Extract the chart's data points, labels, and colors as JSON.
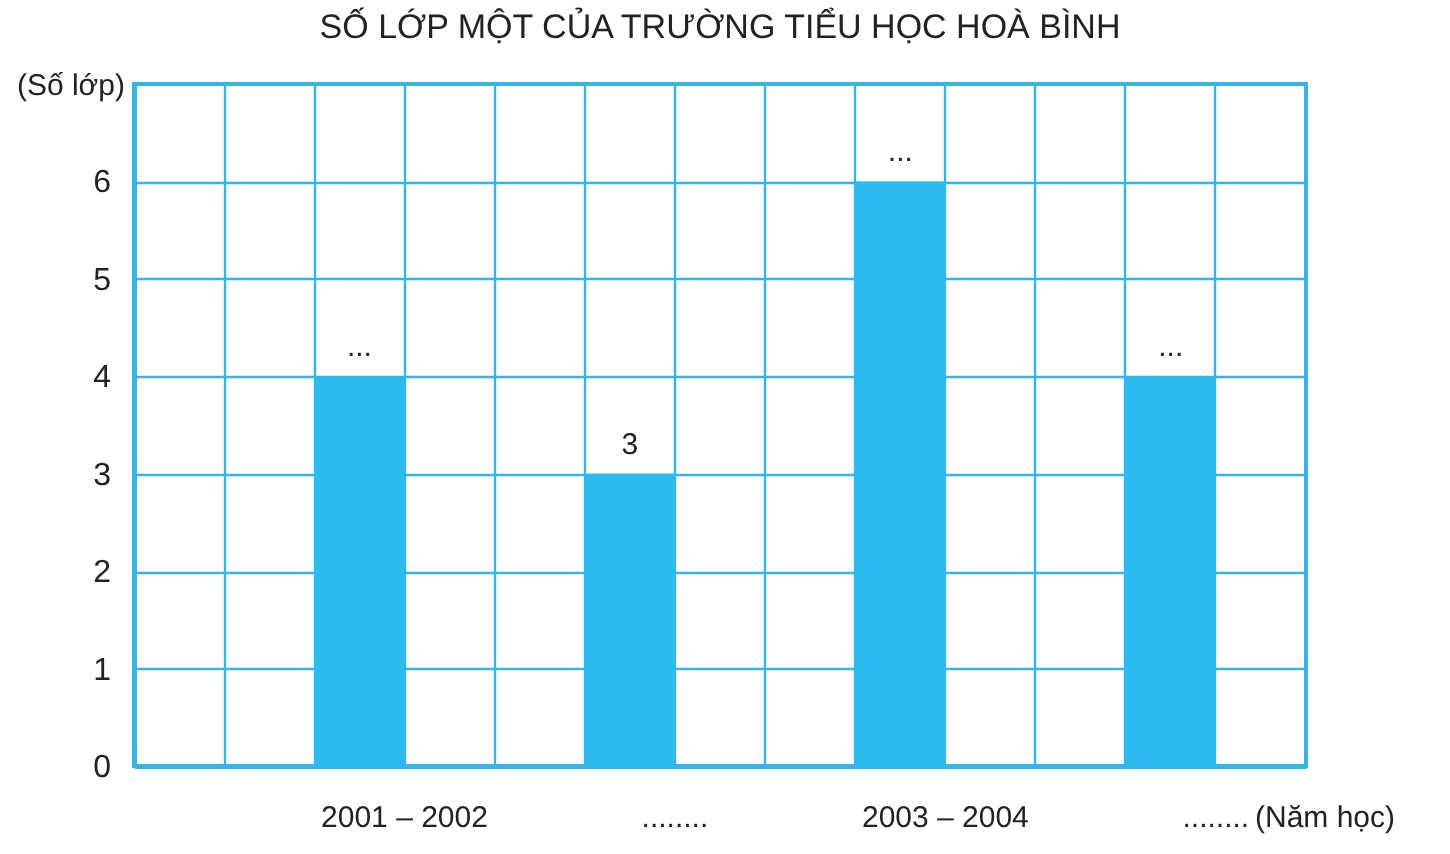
{
  "chart_data": {
    "type": "bar",
    "title": "SỐ LỚP MỘT CỦA TRƯỜNG TIỂU HỌC HOÀ BÌNH",
    "xlabel": "(Năm học)",
    "ylabel": "(Số lớp)",
    "categories": [
      "2001 – 2002",
      "........",
      "2003 – 2004",
      "........"
    ],
    "values": [
      4,
      3,
      6,
      4
    ],
    "value_labels": [
      "...",
      "3",
      "...",
      "..."
    ],
    "color": "#2cbbef",
    "ylim": [
      0,
      7
    ],
    "yticks": [
      0,
      1,
      2,
      3,
      4,
      5,
      6
    ],
    "grid": true
  }
}
